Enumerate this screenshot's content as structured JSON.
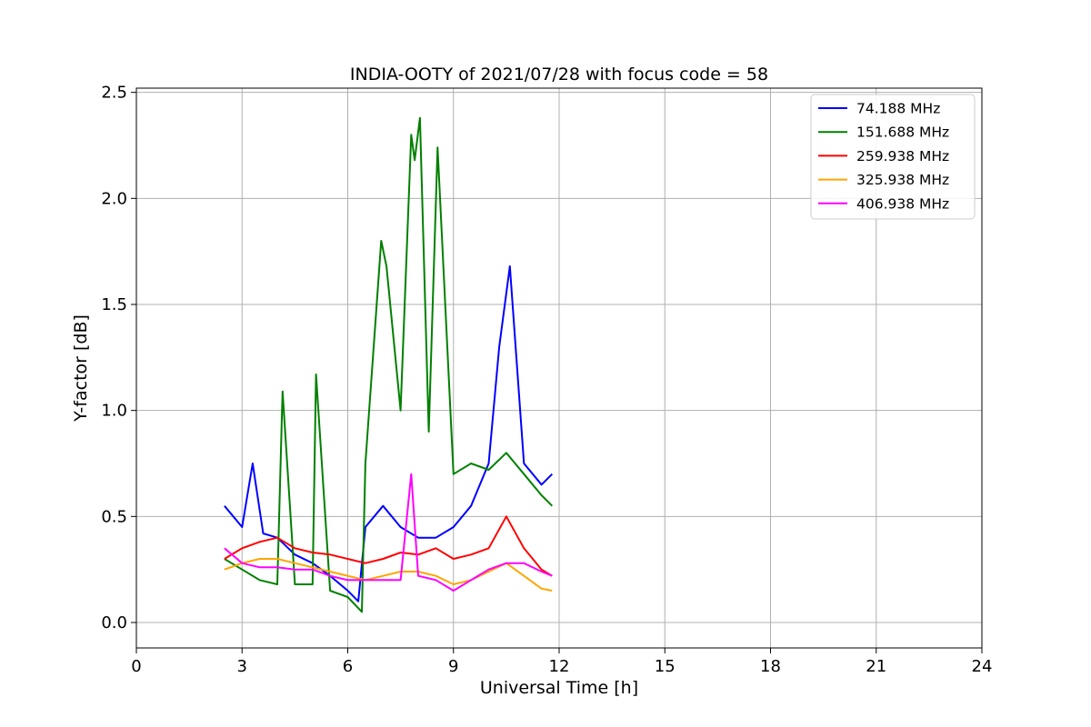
{
  "chart_data": {
    "type": "line",
    "title": "INDIA-OOTY of 2021/07/28 with focus code = 58",
    "xlabel": "Universal Time [h]",
    "ylabel": "Y-factor [dB]",
    "xlim": [
      0,
      24
    ],
    "ylim": [
      -0.12,
      2.52
    ],
    "xticks": [
      0,
      3,
      6,
      9,
      12,
      15,
      18,
      21,
      24
    ],
    "xtick_labels": [
      "0",
      "3",
      "6",
      "9",
      "12",
      "15",
      "18",
      "21",
      "24"
    ],
    "yticks": [
      0.0,
      0.5,
      1.0,
      1.5,
      2.0,
      2.5
    ],
    "ytick_labels": [
      "0.0",
      "0.5",
      "1.0",
      "1.5",
      "2.0",
      "2.5"
    ],
    "grid": true,
    "legend_position": "top-right",
    "series": [
      {
        "name": "  74.188 MHz",
        "color": "#0000ff",
        "x": [
          2.5,
          2.75,
          3.0,
          3.3,
          3.6,
          4.0,
          4.5,
          5.0,
          5.5,
          6.0,
          6.3,
          6.5,
          7.0,
          7.5,
          8.0,
          8.5,
          9.0,
          9.5,
          10.0,
          10.3,
          10.6,
          11.0,
          11.5,
          11.8
        ],
        "y": [
          0.55,
          0.5,
          0.45,
          0.75,
          0.42,
          0.4,
          0.32,
          0.28,
          0.22,
          0.15,
          0.1,
          0.45,
          0.55,
          0.45,
          0.4,
          0.4,
          0.45,
          0.55,
          0.75,
          1.3,
          1.68,
          0.75,
          0.65,
          0.7
        ]
      },
      {
        "name": "151.688 MHz",
        "color": "#008000",
        "x": [
          2.5,
          3.0,
          3.5,
          4.0,
          4.15,
          4.5,
          5.0,
          5.1,
          5.5,
          6.0,
          6.4,
          6.5,
          6.95,
          7.1,
          7.5,
          7.8,
          7.9,
          8.05,
          8.3,
          8.55,
          9.0,
          9.5,
          10.0,
          10.5,
          11.0,
          11.5,
          11.8
        ],
        "y": [
          0.3,
          0.25,
          0.2,
          0.18,
          1.09,
          0.18,
          0.18,
          1.17,
          0.15,
          0.12,
          0.05,
          0.75,
          1.8,
          1.68,
          1.0,
          2.3,
          2.18,
          2.38,
          0.9,
          2.24,
          0.7,
          0.75,
          0.72,
          0.8,
          0.7,
          0.6,
          0.55
        ]
      },
      {
        "name": "259.938 MHz",
        "color": "#ff0000",
        "x": [
          2.5,
          3.0,
          3.5,
          4.0,
          4.5,
          5.0,
          5.5,
          6.0,
          6.5,
          7.0,
          7.5,
          8.0,
          8.5,
          9.0,
          9.5,
          10.0,
          10.5,
          11.0,
          11.5,
          11.8
        ],
        "y": [
          0.3,
          0.35,
          0.38,
          0.4,
          0.35,
          0.33,
          0.32,
          0.3,
          0.28,
          0.3,
          0.33,
          0.32,
          0.35,
          0.3,
          0.32,
          0.35,
          0.5,
          0.35,
          0.25,
          0.22
        ]
      },
      {
        "name": "325.938 MHz",
        "color": "#ffa500",
        "x": [
          2.5,
          3.0,
          3.5,
          4.0,
          4.5,
          5.0,
          5.5,
          6.0,
          6.5,
          7.0,
          7.5,
          8.0,
          8.5,
          9.0,
          9.5,
          10.0,
          10.5,
          11.0,
          11.5,
          11.8
        ],
        "y": [
          0.25,
          0.28,
          0.3,
          0.3,
          0.28,
          0.26,
          0.24,
          0.22,
          0.2,
          0.22,
          0.24,
          0.24,
          0.22,
          0.18,
          0.2,
          0.24,
          0.28,
          0.22,
          0.16,
          0.15
        ]
      },
      {
        "name": "406.938 MHz",
        "color": "#ff00ff",
        "x": [
          2.5,
          3.0,
          3.5,
          4.0,
          4.5,
          5.0,
          5.5,
          6.0,
          6.5,
          7.0,
          7.5,
          7.8,
          8.0,
          8.5,
          9.0,
          9.5,
          10.0,
          10.5,
          11.0,
          11.5,
          11.8
        ],
        "y": [
          0.35,
          0.28,
          0.26,
          0.26,
          0.25,
          0.25,
          0.22,
          0.2,
          0.2,
          0.2,
          0.2,
          0.7,
          0.22,
          0.2,
          0.15,
          0.2,
          0.25,
          0.28,
          0.28,
          0.24,
          0.22
        ]
      }
    ]
  }
}
